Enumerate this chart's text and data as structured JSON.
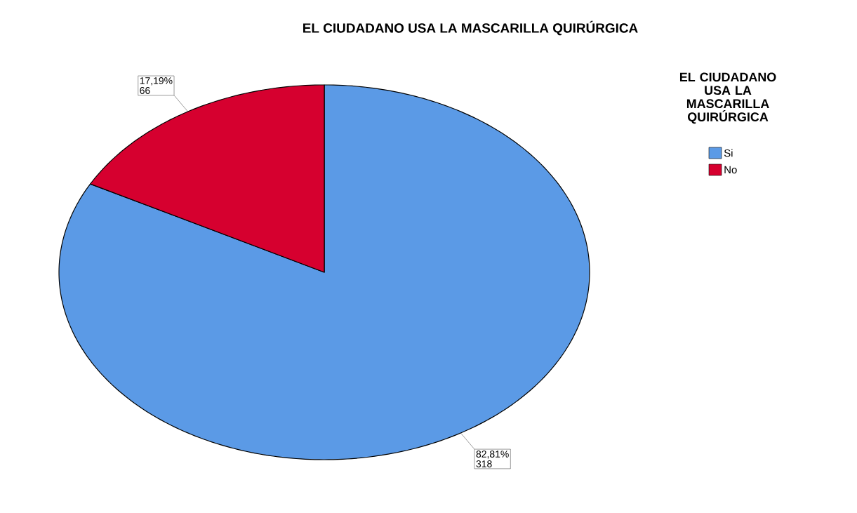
{
  "chart_data": {
    "type": "pie",
    "title": "EL CIUDADANO USA LA MASCARILLA QUIRÚRGICA",
    "legend_title": "EL CIUDADANO USA LA MASCARILLA QUIRÚRGICA",
    "categories": [
      "Si",
      "No"
    ],
    "values": [
      82.81,
      17.19
    ],
    "colors": [
      "#5b9ae6",
      "#d6002f"
    ],
    "value_labels": [
      "82,81%",
      "17,19%"
    ],
    "annotations": [
      "318",
      "66"
    ],
    "legend": "right"
  }
}
